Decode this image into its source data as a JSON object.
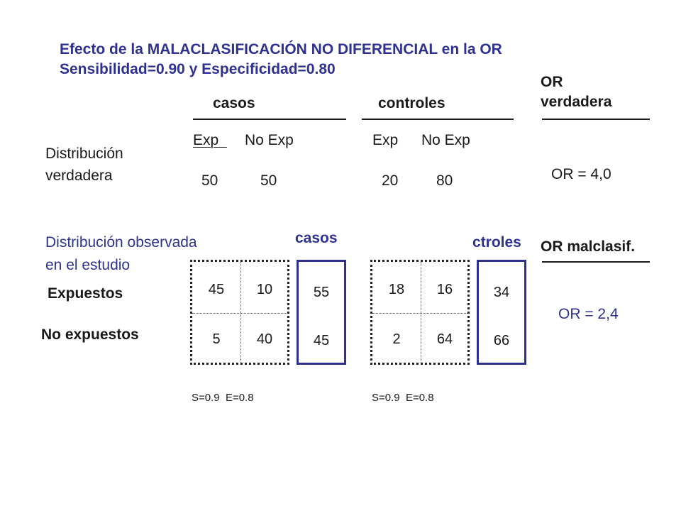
{
  "title": {
    "line1": "Efecto de la MALACLASIFICACIÓN NO DIFERENCIAL en la OR",
    "line2": "Sensibilidad=0.90 y  Especificidad=0.80"
  },
  "true_dist": {
    "label_line1": "Distribución",
    "label_line2": "verdadera",
    "casos_header": "casos",
    "controles_header": "controles",
    "exp_label": "Exp",
    "noexp_label": "No Exp",
    "casos_exp": "50",
    "casos_noexp": "50",
    "controles_exp": "20",
    "controles_noexp": "80"
  },
  "or_true": {
    "header_line1": "OR",
    "header_line2": "verdadera",
    "value": "OR = 4,0"
  },
  "observed": {
    "label_line1": "Distribución observada",
    "label_line2": "en el estudio",
    "row_exp": "Expuestos",
    "row_noexp": "No expuestos",
    "casos_header": "casos",
    "ctroles_header": "ctroles",
    "casos_table": {
      "r1c1": "45",
      "r1c2": "10",
      "r2c1": "5",
      "r2c2": "40"
    },
    "casos_totals": {
      "exp": "55",
      "noexp": "45"
    },
    "controles_table": {
      "r1c1": "18",
      "r1c2": "16",
      "r2c1": "2",
      "r2c2": "64"
    },
    "controles_totals": {
      "exp": "34",
      "noexp": "66"
    },
    "casos_se_label": "S=0.9  E=0.8",
    "controles_se_label": "S=0.9  E=0.8"
  },
  "or_malclasif": {
    "header": "OR malclasif.",
    "value": "OR = 2,4"
  },
  "colors": {
    "title": "#2e3192",
    "box_border": "#2e3192",
    "text": "#1a1a1a"
  }
}
